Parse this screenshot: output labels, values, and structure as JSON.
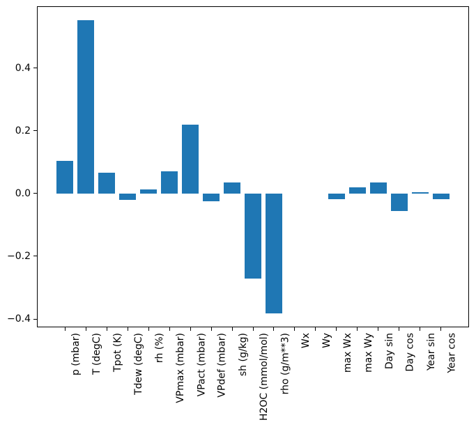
{
  "figure": {
    "background_color": "#ffffff",
    "title": ""
  },
  "chart_data": {
    "type": "bar",
    "title": "",
    "xlabel": "",
    "ylabel": "",
    "bar_color": "#1f77b4",
    "axis_color": "#000000",
    "grid": false,
    "legend": null,
    "categories": [
      "p (mbar)",
      "T (degC)",
      "Tpot (K)",
      "Tdew (degC)",
      "rh (%)",
      "VPmax (mbar)",
      "VPact (mbar)",
      "VPdef (mbar)",
      "sh (g/kg)",
      "H2OC (mmol/mol)",
      "rho (g/m**3)",
      "Wx",
      "Wy",
      "max Wx",
      "max Wy",
      "Day sin",
      "Day cos",
      "Year sin",
      "Year cos"
    ],
    "values": [
      0.103,
      0.552,
      0.067,
      -0.02,
      0.013,
      0.071,
      0.219,
      -0.024,
      0.034,
      -0.272,
      -0.383,
      0.0,
      0.0,
      -0.018,
      0.019,
      0.036,
      -0.057,
      0.005,
      -0.018
    ],
    "yticks": [
      {
        "value": 0.4,
        "label": "0.4"
      },
      {
        "value": 0.2,
        "label": "0.2"
      },
      {
        "value": 0.0,
        "label": "0.0"
      },
      {
        "value": -0.2,
        "label": "−0.2"
      },
      {
        "value": -0.4,
        "label": "−0.4"
      }
    ],
    "ylim": [
      -0.4265,
      0.5965
    ],
    "xlim": [
      -1.34,
      19.34
    ],
    "bar_width_units": 0.8
  }
}
